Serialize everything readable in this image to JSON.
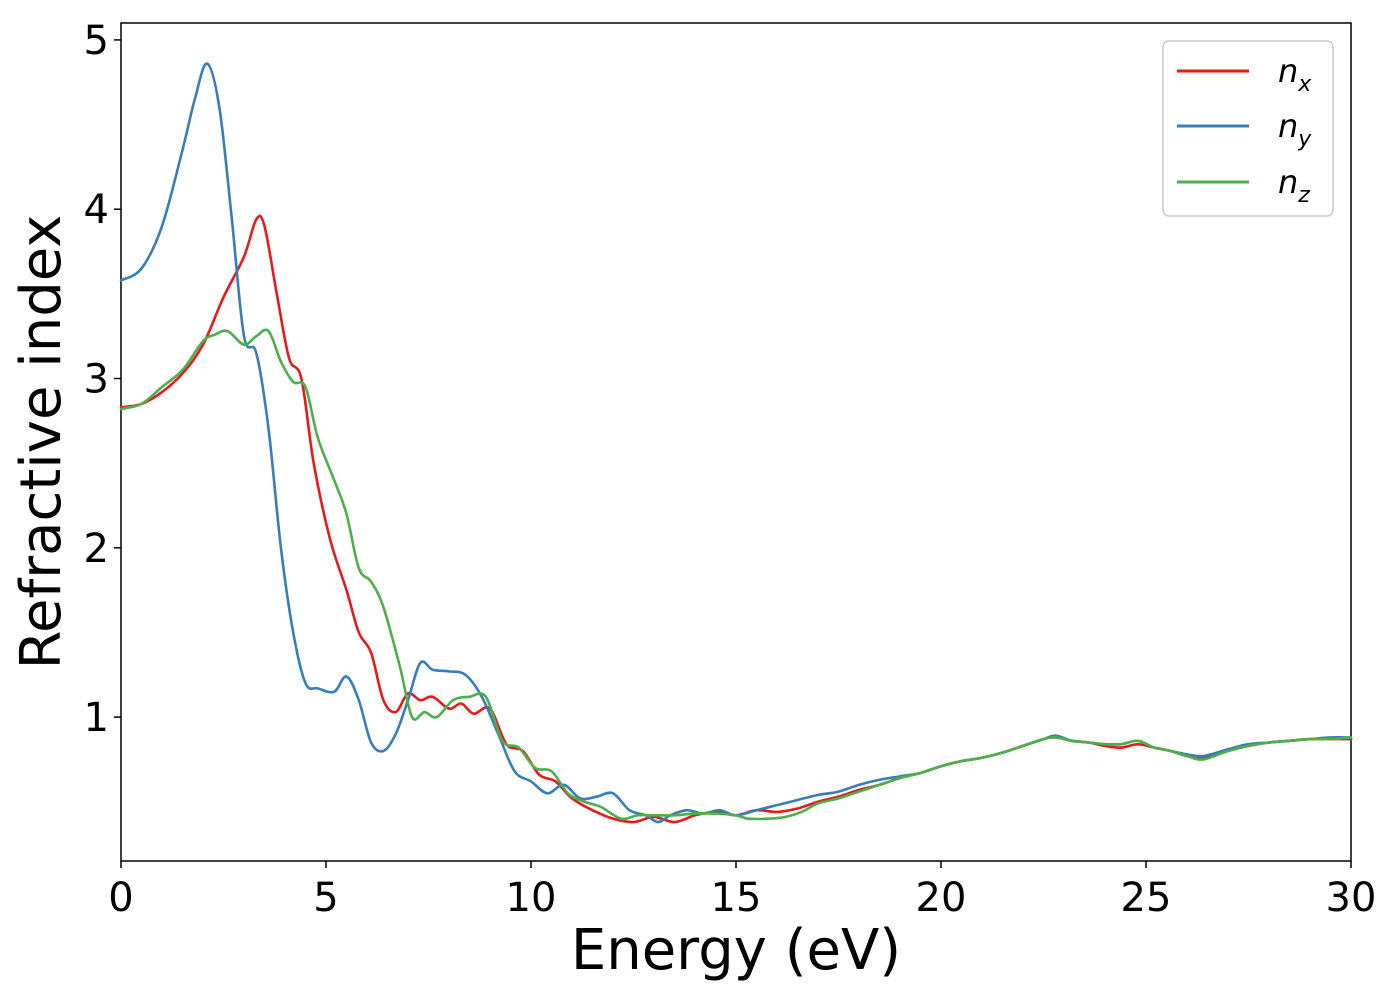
{
  "chart_data": {
    "type": "line",
    "title": "",
    "xlabel": "Energy (eV)",
    "ylabel": "Refractive index",
    "xlim": [
      0,
      30
    ],
    "ylim": [
      0.15,
      5.1
    ],
    "xticks": [
      0,
      5,
      10,
      15,
      20,
      25,
      30
    ],
    "yticks": [
      1,
      2,
      3,
      4,
      5
    ],
    "grid": false,
    "legend_position": "top-right",
    "series": [
      {
        "name": "n_x",
        "name_base": "n",
        "name_sub": "x",
        "color": "#e41a1c",
        "points": [
          [
            0,
            2.83
          ],
          [
            0.5,
            2.85
          ],
          [
            1.0,
            2.92
          ],
          [
            1.5,
            3.03
          ],
          [
            2.0,
            3.2
          ],
          [
            2.5,
            3.48
          ],
          [
            3.0,
            3.72
          ],
          [
            3.3,
            3.94
          ],
          [
            3.5,
            3.9
          ],
          [
            3.8,
            3.5
          ],
          [
            4.1,
            3.12
          ],
          [
            4.4,
            3.0
          ],
          [
            4.7,
            2.5
          ],
          [
            5.1,
            2.05
          ],
          [
            5.5,
            1.75
          ],
          [
            5.8,
            1.5
          ],
          [
            6.1,
            1.38
          ],
          [
            6.4,
            1.1
          ],
          [
            6.7,
            1.03
          ],
          [
            7.0,
            1.14
          ],
          [
            7.3,
            1.1
          ],
          [
            7.6,
            1.12
          ],
          [
            8.0,
            1.05
          ],
          [
            8.3,
            1.08
          ],
          [
            8.6,
            1.02
          ],
          [
            9.0,
            1.05
          ],
          [
            9.4,
            0.84
          ],
          [
            9.8,
            0.8
          ],
          [
            10.2,
            0.66
          ],
          [
            10.6,
            0.62
          ],
          [
            11.0,
            0.52
          ],
          [
            11.5,
            0.45
          ],
          [
            12.0,
            0.4
          ],
          [
            12.5,
            0.38
          ],
          [
            13.0,
            0.41
          ],
          [
            13.5,
            0.38
          ],
          [
            14.0,
            0.42
          ],
          [
            14.5,
            0.44
          ],
          [
            15.0,
            0.42
          ],
          [
            15.5,
            0.45
          ],
          [
            16.0,
            0.44
          ],
          [
            16.5,
            0.46
          ],
          [
            17.0,
            0.5
          ],
          [
            17.5,
            0.53
          ],
          [
            18.0,
            0.57
          ],
          [
            18.5,
            0.6
          ],
          [
            19.0,
            0.64
          ],
          [
            19.5,
            0.67
          ],
          [
            20.0,
            0.71
          ],
          [
            20.5,
            0.74
          ],
          [
            21.0,
            0.76
          ],
          [
            21.5,
            0.79
          ],
          [
            22.0,
            0.83
          ],
          [
            22.5,
            0.87
          ],
          [
            22.8,
            0.88
          ],
          [
            23.2,
            0.86
          ],
          [
            23.6,
            0.85
          ],
          [
            24.0,
            0.83
          ],
          [
            24.4,
            0.82
          ],
          [
            24.8,
            0.84
          ],
          [
            25.2,
            0.82
          ],
          [
            25.6,
            0.8
          ],
          [
            26.0,
            0.77
          ],
          [
            26.4,
            0.76
          ],
          [
            27.0,
            0.8
          ],
          [
            27.5,
            0.83
          ],
          [
            28.0,
            0.85
          ],
          [
            28.5,
            0.86
          ],
          [
            29.0,
            0.87
          ],
          [
            29.5,
            0.87
          ],
          [
            30.0,
            0.87
          ]
        ]
      },
      {
        "name": "n_y",
        "name_base": "n",
        "name_sub": "y",
        "color": "#377eb8",
        "points": [
          [
            0,
            3.58
          ],
          [
            0.5,
            3.65
          ],
          [
            1.0,
            3.9
          ],
          [
            1.5,
            4.35
          ],
          [
            1.8,
            4.65
          ],
          [
            2.1,
            4.86
          ],
          [
            2.4,
            4.6
          ],
          [
            2.7,
            3.95
          ],
          [
            3.0,
            3.25
          ],
          [
            3.3,
            3.15
          ],
          [
            3.6,
            2.7
          ],
          [
            3.9,
            2.0
          ],
          [
            4.2,
            1.5
          ],
          [
            4.5,
            1.2
          ],
          [
            4.8,
            1.17
          ],
          [
            5.2,
            1.15
          ],
          [
            5.5,
            1.24
          ],
          [
            5.8,
            1.1
          ],
          [
            6.1,
            0.85
          ],
          [
            6.4,
            0.8
          ],
          [
            6.7,
            0.9
          ],
          [
            7.0,
            1.1
          ],
          [
            7.3,
            1.32
          ],
          [
            7.6,
            1.28
          ],
          [
            8.0,
            1.27
          ],
          [
            8.4,
            1.25
          ],
          [
            8.8,
            1.12
          ],
          [
            9.2,
            0.9
          ],
          [
            9.6,
            0.68
          ],
          [
            10.0,
            0.62
          ],
          [
            10.4,
            0.55
          ],
          [
            10.8,
            0.6
          ],
          [
            11.2,
            0.52
          ],
          [
            11.6,
            0.53
          ],
          [
            12.0,
            0.55
          ],
          [
            12.4,
            0.45
          ],
          [
            12.8,
            0.42
          ],
          [
            13.1,
            0.38
          ],
          [
            13.4,
            0.42
          ],
          [
            13.8,
            0.45
          ],
          [
            14.2,
            0.43
          ],
          [
            14.6,
            0.45
          ],
          [
            15.0,
            0.42
          ],
          [
            15.5,
            0.45
          ],
          [
            16.0,
            0.48
          ],
          [
            16.5,
            0.51
          ],
          [
            17.0,
            0.54
          ],
          [
            17.5,
            0.56
          ],
          [
            18.0,
            0.6
          ],
          [
            18.5,
            0.63
          ],
          [
            19.0,
            0.65
          ],
          [
            19.5,
            0.67
          ],
          [
            20.0,
            0.71
          ],
          [
            20.5,
            0.74
          ],
          [
            21.0,
            0.76
          ],
          [
            21.5,
            0.79
          ],
          [
            22.0,
            0.83
          ],
          [
            22.5,
            0.87
          ],
          [
            22.8,
            0.89
          ],
          [
            23.2,
            0.86
          ],
          [
            23.6,
            0.85
          ],
          [
            24.0,
            0.84
          ],
          [
            24.4,
            0.84
          ],
          [
            24.8,
            0.86
          ],
          [
            25.2,
            0.82
          ],
          [
            25.6,
            0.8
          ],
          [
            26.0,
            0.78
          ],
          [
            26.4,
            0.77
          ],
          [
            27.0,
            0.81
          ],
          [
            27.5,
            0.84
          ],
          [
            28.0,
            0.85
          ],
          [
            28.5,
            0.86
          ],
          [
            29.0,
            0.87
          ],
          [
            29.5,
            0.88
          ],
          [
            30.0,
            0.88
          ]
        ]
      },
      {
        "name": "n_z",
        "name_base": "n",
        "name_sub": "z",
        "color": "#4daf4a",
        "points": [
          [
            0,
            2.82
          ],
          [
            0.5,
            2.85
          ],
          [
            1.0,
            2.95
          ],
          [
            1.5,
            3.05
          ],
          [
            2.0,
            3.22
          ],
          [
            2.3,
            3.26
          ],
          [
            2.6,
            3.28
          ],
          [
            3.0,
            3.2
          ],
          [
            3.3,
            3.25
          ],
          [
            3.6,
            3.28
          ],
          [
            3.9,
            3.1
          ],
          [
            4.2,
            2.98
          ],
          [
            4.5,
            2.95
          ],
          [
            4.8,
            2.65
          ],
          [
            5.2,
            2.4
          ],
          [
            5.5,
            2.2
          ],
          [
            5.8,
            1.88
          ],
          [
            6.1,
            1.8
          ],
          [
            6.4,
            1.65
          ],
          [
            6.8,
            1.3
          ],
          [
            7.1,
            1.0
          ],
          [
            7.4,
            1.03
          ],
          [
            7.7,
            1.0
          ],
          [
            8.1,
            1.1
          ],
          [
            8.5,
            1.12
          ],
          [
            8.9,
            1.12
          ],
          [
            9.3,
            0.86
          ],
          [
            9.7,
            0.82
          ],
          [
            10.1,
            0.7
          ],
          [
            10.5,
            0.68
          ],
          [
            10.9,
            0.55
          ],
          [
            11.3,
            0.5
          ],
          [
            11.7,
            0.47
          ],
          [
            12.2,
            0.4
          ],
          [
            12.6,
            0.42
          ],
          [
            13.0,
            0.42
          ],
          [
            13.5,
            0.42
          ],
          [
            14.0,
            0.43
          ],
          [
            14.5,
            0.43
          ],
          [
            15.0,
            0.42
          ],
          [
            15.3,
            0.4
          ],
          [
            15.8,
            0.4
          ],
          [
            16.2,
            0.41
          ],
          [
            16.6,
            0.44
          ],
          [
            17.0,
            0.49
          ],
          [
            17.5,
            0.52
          ],
          [
            18.0,
            0.56
          ],
          [
            18.5,
            0.6
          ],
          [
            19.0,
            0.64
          ],
          [
            19.5,
            0.67
          ],
          [
            20.0,
            0.71
          ],
          [
            20.5,
            0.74
          ],
          [
            21.0,
            0.76
          ],
          [
            21.5,
            0.79
          ],
          [
            22.0,
            0.83
          ],
          [
            22.5,
            0.87
          ],
          [
            22.8,
            0.88
          ],
          [
            23.2,
            0.86
          ],
          [
            23.6,
            0.85
          ],
          [
            24.0,
            0.84
          ],
          [
            24.4,
            0.84
          ],
          [
            24.8,
            0.86
          ],
          [
            25.2,
            0.82
          ],
          [
            25.6,
            0.8
          ],
          [
            26.0,
            0.77
          ],
          [
            26.4,
            0.75
          ],
          [
            27.0,
            0.8
          ],
          [
            27.5,
            0.83
          ],
          [
            28.0,
            0.85
          ],
          [
            28.5,
            0.86
          ],
          [
            29.0,
            0.87
          ],
          [
            29.5,
            0.87
          ],
          [
            30.0,
            0.88
          ]
        ]
      }
    ]
  }
}
